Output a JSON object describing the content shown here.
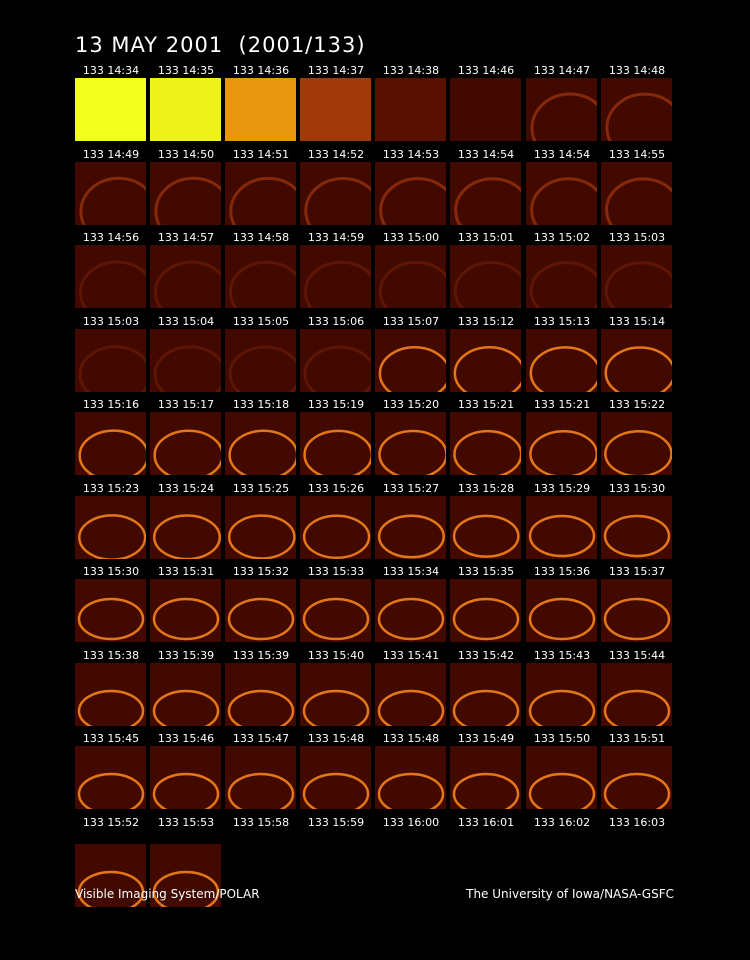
{
  "header": {
    "title": "13 MAY 2001  (2001/133)"
  },
  "frames": [
    "133 14:34",
    "133 14:35",
    "133 14:36",
    "133 14:37",
    "133 14:38",
    "133 14:46",
    "133 14:47",
    "133 14:48",
    "133 14:49",
    "133 14:50",
    "133 14:51",
    "133 14:52",
    "133 14:53",
    "133 14:54",
    "133 14:54",
    "133 14:55",
    "133 14:56",
    "133 14:57",
    "133 14:58",
    "133 14:59",
    "133 15:00",
    "133 15:01",
    "133 15:02",
    "133 15:03",
    "133 15:03",
    "133 15:04",
    "133 15:05",
    "133 15:06",
    "133 15:07",
    "133 15:12",
    "133 15:13",
    "133 15:14",
    "133 15:16",
    "133 15:17",
    "133 15:18",
    "133 15:19",
    "133 15:20",
    "133 15:21",
    "133 15:21",
    "133 15:22",
    "133 15:23",
    "133 15:24",
    "133 15:25",
    "133 15:26",
    "133 15:27",
    "133 15:28",
    "133 15:29",
    "133 15:30",
    "133 15:30",
    "133 15:31",
    "133 15:32",
    "133 15:33",
    "133 15:34",
    "133 15:35",
    "133 15:36",
    "133 15:37",
    "133 15:38",
    "133 15:39",
    "133 15:39",
    "133 15:40",
    "133 15:41",
    "133 15:42",
    "133 15:43",
    "133 15:44",
    "133 15:45",
    "133 15:46",
    "133 15:47",
    "133 15:48",
    "133 15:48",
    "133 15:49",
    "133 15:50",
    "133 15:51",
    "133 15:52",
    "133 15:53",
    "133 15:58",
    "133 15:59",
    "133 16:00",
    "133 16:01",
    "133 16:02",
    "133 16:03"
  ],
  "footer": {
    "left": "Visible Imaging System/POLAR",
    "right": "The University of Iowa/NASA-GSFC"
  }
}
